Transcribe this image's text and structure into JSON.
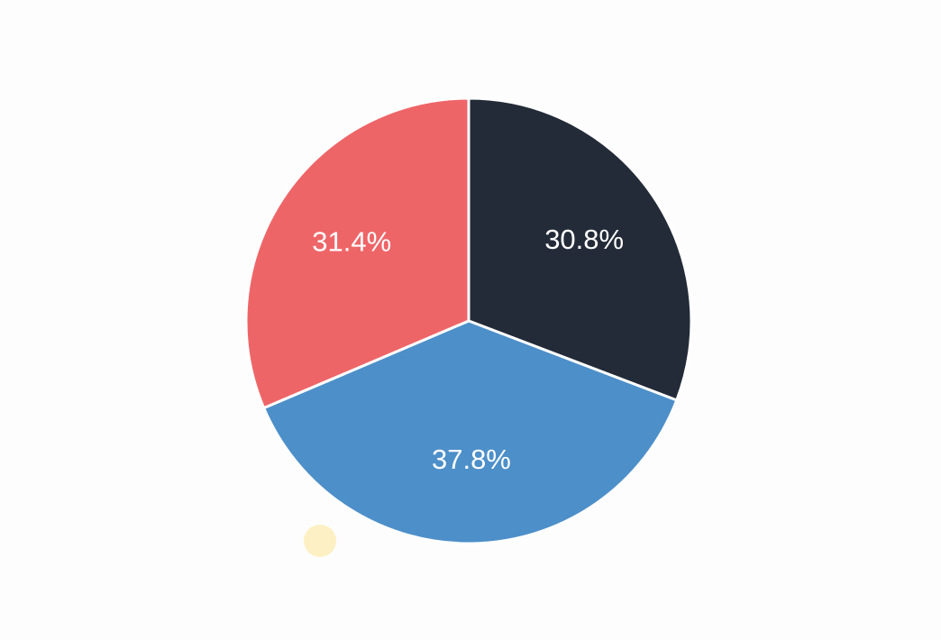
{
  "chart_data": {
    "type": "pie",
    "values": [
      30.8,
      37.8,
      31.4
    ],
    "value_labels": [
      "30.8%",
      "37.8%",
      "31.4%"
    ],
    "colors": [
      "#232b38",
      "#4d8fc9",
      "#ee6568"
    ]
  }
}
